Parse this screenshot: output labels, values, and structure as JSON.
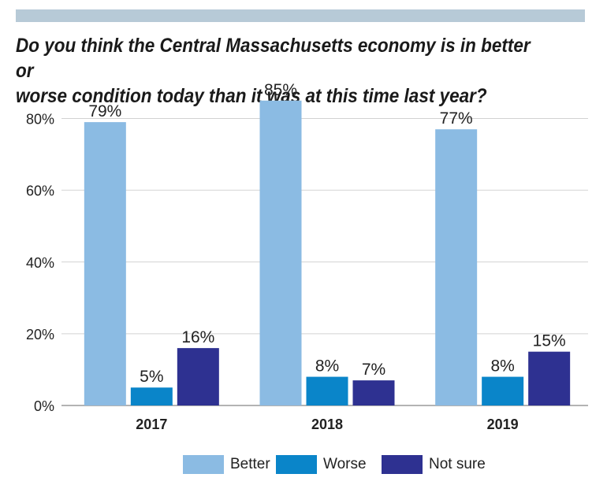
{
  "colors": {
    "top_bar": "#b7cad7",
    "grid": "#d2d2d2",
    "axis": "#9a9a9a",
    "text": "#222222"
  },
  "title_lines": [
    "Do you think the Central Massachusetts economy is in better or",
    "worse condition today than it was at this time last year?"
  ],
  "chart_data": {
    "type": "bar",
    "title": "Do you think the Central Massachusetts economy is in better or worse condition today than it was at this time last year?",
    "xlabel": "",
    "ylabel": "",
    "categories": [
      "2017",
      "2018",
      "2019"
    ],
    "series": [
      {
        "name": "Better",
        "color": "#8bbbe3",
        "values": [
          79,
          85,
          77
        ]
      },
      {
        "name": "Worse",
        "color": "#0a85c9",
        "values": [
          5,
          8,
          8
        ]
      },
      {
        "name": "Not sure",
        "color": "#2e3191",
        "values": [
          16,
          7,
          15
        ]
      }
    ],
    "value_labels": [
      [
        "79%",
        "85%",
        "77%"
      ],
      [
        "5%",
        "8%",
        "8%"
      ],
      [
        "16%",
        "7%",
        "15%"
      ]
    ],
    "ylim": [
      0,
      90
    ],
    "yticks": [
      0,
      20,
      40,
      60,
      80
    ],
    "ytick_labels": [
      "0%",
      "20%",
      "40%",
      "60%",
      "80%"
    ],
    "grid": true,
    "legend_position": "bottom"
  }
}
